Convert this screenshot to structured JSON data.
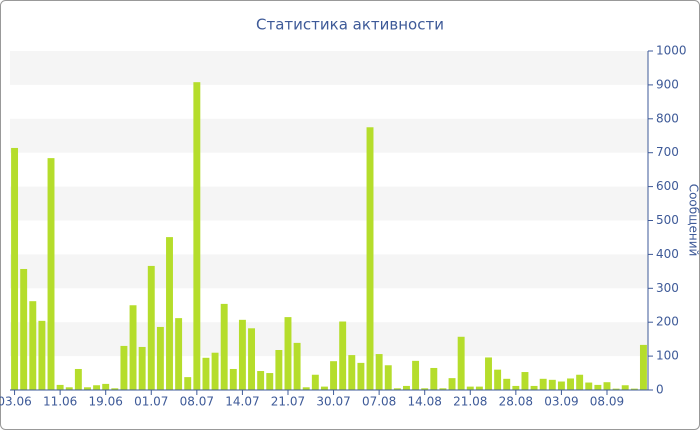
{
  "chart_data": {
    "type": "bar",
    "title": "Статистика активности",
    "y_axis_label": "Сообщений",
    "categories": [
      "03.06",
      null,
      null,
      null,
      null,
      "11.06",
      null,
      null,
      null,
      null,
      "19.06",
      null,
      null,
      null,
      null,
      "01.07",
      null,
      null,
      null,
      null,
      "08.07",
      null,
      null,
      null,
      null,
      "14.07",
      null,
      null,
      null,
      null,
      "21.07",
      null,
      null,
      null,
      null,
      "30.07",
      null,
      null,
      null,
      null,
      "07.08",
      null,
      null,
      null,
      null,
      "14.08",
      null,
      null,
      null,
      null,
      "21.08",
      null,
      null,
      null,
      null,
      "28.08",
      null,
      null,
      null,
      null,
      "03.09",
      null,
      null,
      null,
      null,
      "08.09",
      null,
      null,
      null,
      null
    ],
    "values": [
      714,
      357,
      262,
      204,
      684,
      15,
      8,
      62,
      8,
      14,
      18,
      5,
      130,
      250,
      127,
      366,
      186,
      451,
      212,
      38,
      908,
      95,
      110,
      254,
      62,
      207,
      182,
      56,
      50,
      118,
      215,
      139,
      8,
      45,
      10,
      85,
      202,
      103,
      80,
      775,
      106,
      73,
      5,
      12,
      86,
      5,
      65,
      5,
      35,
      157,
      10,
      10,
      96,
      60,
      33,
      12,
      53,
      12,
      33,
      30,
      25,
      34,
      45,
      22,
      15,
      23,
      4,
      14,
      4,
      133
    ],
    "color": "#b5dd2b",
    "ylim": [
      0,
      1000
    ],
    "yticks": [
      0,
      100,
      200,
      300,
      400,
      500,
      600,
      700,
      800,
      900,
      1000
    ],
    "grid": true
  }
}
